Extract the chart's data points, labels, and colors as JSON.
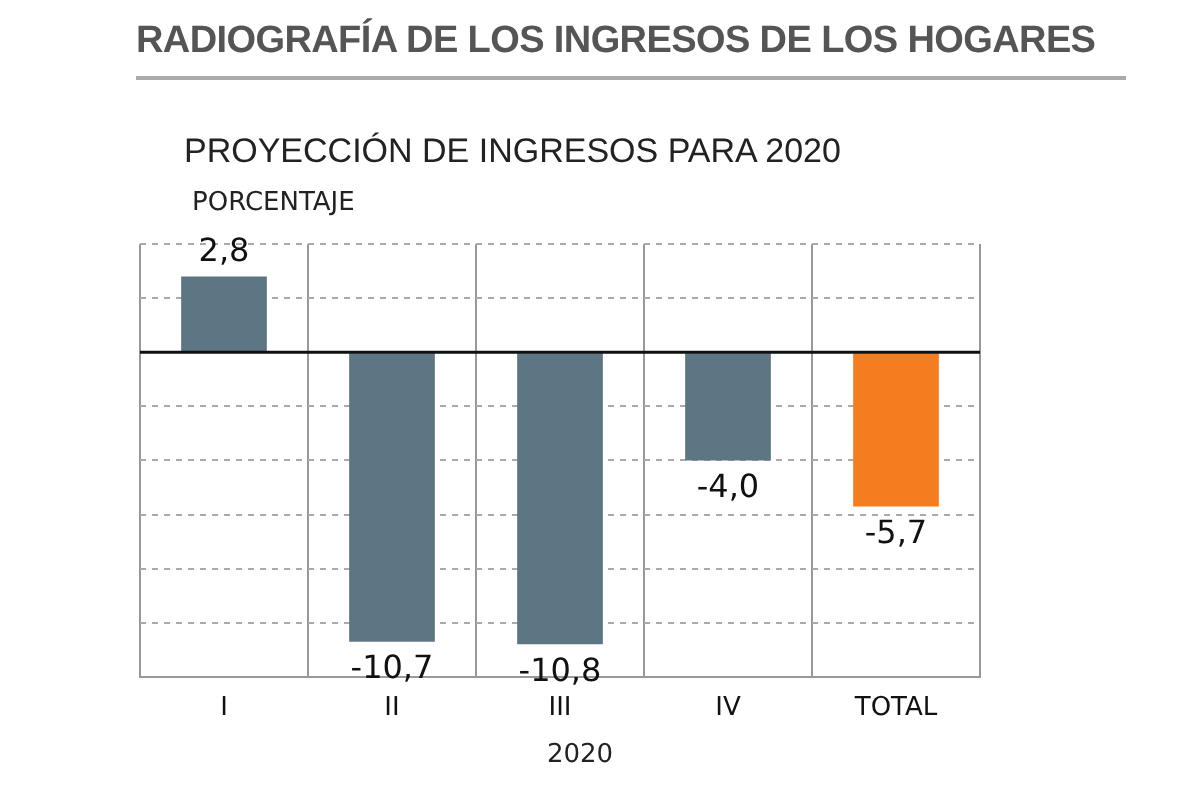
{
  "chart_data": {
    "type": "bar",
    "title": "RADIOGRAFÍA DE LOS INGRESOS DE LOS HOGARES",
    "subtitle": "PROYECCIÓN DE INGRESOS PARA 2020",
    "ylabel": "PORCENTAJE",
    "xlabel": "2020",
    "categories": [
      "I",
      "II",
      "III",
      "IV",
      "TOTAL"
    ],
    "values": [
      2.8,
      -10.7,
      -10.8,
      -4.0,
      -5.7
    ],
    "colors": [
      "#5d7684",
      "#5d7684",
      "#5d7684",
      "#5d7684",
      "#f47d20"
    ],
    "value_labels": [
      "2,8",
      "-10,7",
      "-10,8",
      "-4,0",
      "-5,7"
    ],
    "grid": true,
    "tick_labels": "x",
    "legend": false
  }
}
